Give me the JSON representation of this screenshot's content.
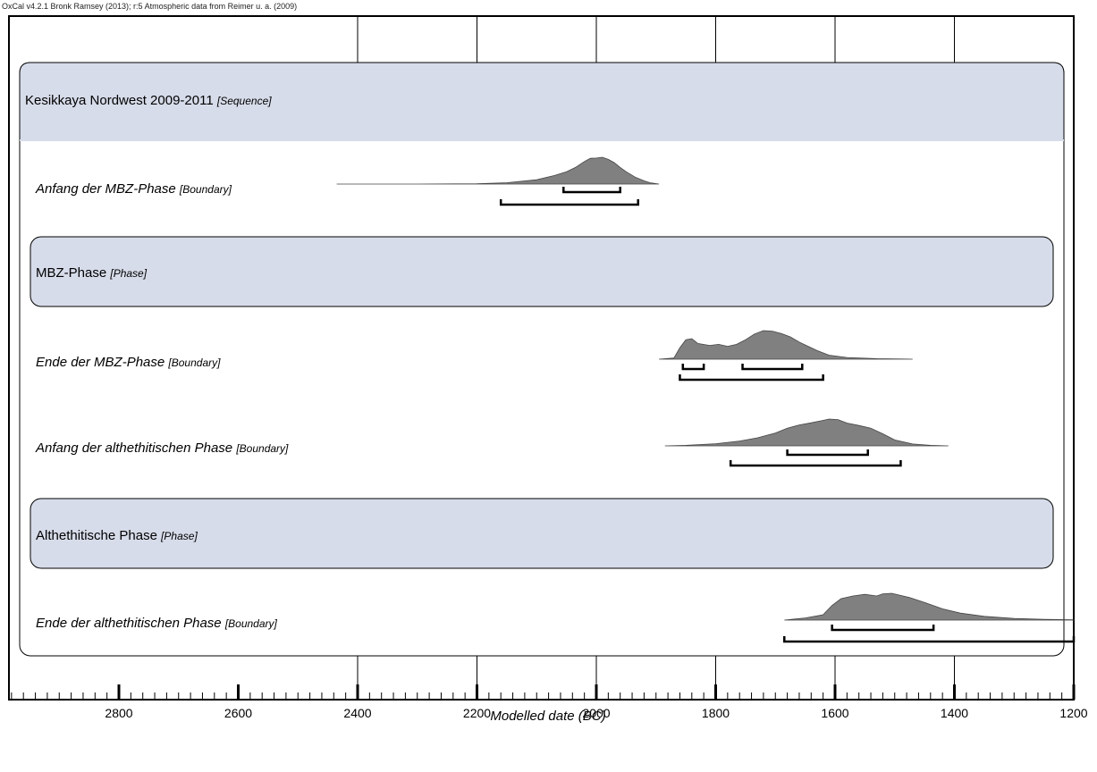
{
  "header_text": "OxCal v4.2.1 Bronk Ramsey (2013); r:5 Atmospheric data from Reimer u. a. (2009)",
  "colors": {
    "panel_fill": "#d7dcea",
    "distribution_fill": "#808080",
    "axis": "#000000"
  },
  "chart_data": {
    "type": "area",
    "xlabel": "Modelled date (BC)",
    "xlim": [
      2980,
      1200
    ],
    "x_reversed": true,
    "grid": true,
    "gridlines": [
      2400,
      2200,
      2000,
      1800,
      1600,
      1400
    ],
    "major_ticks": [
      2800,
      2600,
      2400,
      2200,
      2000,
      1800,
      1600,
      1400,
      1200
    ],
    "tick_labels": [
      "2800",
      "2600",
      "2400",
      "2200",
      "2000",
      "1800",
      "1600",
      "1400",
      "1200"
    ],
    "minor_tick_step": 20,
    "groups": [
      {
        "label": "Kesikkaya Nordwest 2009-2011",
        "kind": "[Sequence]"
      },
      {
        "label": "MBZ-Phase",
        "kind": "[Phase]"
      },
      {
        "label": "Althethitische Phase",
        "kind": "[Phase]"
      }
    ],
    "rows": [
      {
        "label": "Anfang der MBZ-Phase",
        "kind": "[Boundary]",
        "distribution": [
          [
            2435,
            0
          ],
          [
            2300,
            0
          ],
          [
            2200,
            0.01
          ],
          [
            2150,
            0.05
          ],
          [
            2100,
            0.16
          ],
          [
            2070,
            0.32
          ],
          [
            2050,
            0.46
          ],
          [
            2035,
            0.62
          ],
          [
            2020,
            0.84
          ],
          [
            2010,
            0.96
          ],
          [
            2000,
            0.97
          ],
          [
            1990,
            1.0
          ],
          [
            1980,
            0.92
          ],
          [
            1970,
            0.8
          ],
          [
            1960,
            0.62
          ],
          [
            1950,
            0.46
          ],
          [
            1935,
            0.26
          ],
          [
            1920,
            0.12
          ],
          [
            1910,
            0.05
          ],
          [
            1895,
            0
          ]
        ],
        "ranges_68": [
          [
            2055,
            1960
          ]
        ],
        "ranges_95": [
          [
            2160,
            1930
          ]
        ]
      },
      {
        "label": "Ende der MBZ-Phase",
        "kind": "[Boundary]",
        "distribution": [
          [
            1895,
            0
          ],
          [
            1870,
            0.04
          ],
          [
            1860,
            0.4
          ],
          [
            1850,
            0.68
          ],
          [
            1840,
            0.72
          ],
          [
            1830,
            0.55
          ],
          [
            1810,
            0.48
          ],
          [
            1795,
            0.52
          ],
          [
            1780,
            0.45
          ],
          [
            1765,
            0.52
          ],
          [
            1750,
            0.68
          ],
          [
            1735,
            0.88
          ],
          [
            1720,
            1.0
          ],
          [
            1705,
            0.98
          ],
          [
            1690,
            0.9
          ],
          [
            1675,
            0.78
          ],
          [
            1660,
            0.6
          ],
          [
            1645,
            0.45
          ],
          [
            1630,
            0.3
          ],
          [
            1610,
            0.14
          ],
          [
            1580,
            0.06
          ],
          [
            1530,
            0.02
          ],
          [
            1470,
            0
          ]
        ],
        "ranges_68": [
          [
            1855,
            1820
          ],
          [
            1755,
            1655
          ]
        ],
        "ranges_95": [
          [
            1860,
            1620
          ]
        ]
      },
      {
        "label": "Anfang der althethitischen Phase",
        "kind": "[Boundary]",
        "distribution": [
          [
            1885,
            0
          ],
          [
            1850,
            0.02
          ],
          [
            1800,
            0.08
          ],
          [
            1760,
            0.18
          ],
          [
            1730,
            0.3
          ],
          [
            1700,
            0.48
          ],
          [
            1680,
            0.66
          ],
          [
            1660,
            0.78
          ],
          [
            1640,
            0.86
          ],
          [
            1620,
            0.95
          ],
          [
            1610,
            1.0
          ],
          [
            1595,
            0.98
          ],
          [
            1580,
            0.85
          ],
          [
            1560,
            0.76
          ],
          [
            1540,
            0.66
          ],
          [
            1520,
            0.45
          ],
          [
            1500,
            0.22
          ],
          [
            1470,
            0.07
          ],
          [
            1440,
            0.02
          ],
          [
            1410,
            0
          ]
        ],
        "ranges_68": [
          [
            1680,
            1545
          ]
        ],
        "ranges_95": [
          [
            1775,
            1490
          ]
        ]
      },
      {
        "label": "Ende der althethitischen Phase",
        "kind": "[Boundary]",
        "distribution": [
          [
            1685,
            0
          ],
          [
            1650,
            0.08
          ],
          [
            1620,
            0.2
          ],
          [
            1605,
            0.55
          ],
          [
            1590,
            0.8
          ],
          [
            1570,
            0.9
          ],
          [
            1550,
            0.96
          ],
          [
            1530,
            0.9
          ],
          [
            1520,
            0.98
          ],
          [
            1505,
            1.0
          ],
          [
            1490,
            0.92
          ],
          [
            1475,
            0.84
          ],
          [
            1450,
            0.66
          ],
          [
            1420,
            0.42
          ],
          [
            1390,
            0.26
          ],
          [
            1350,
            0.14
          ],
          [
            1300,
            0.06
          ],
          [
            1250,
            0.03
          ],
          [
            1200,
            0.01
          ]
        ],
        "ranges_68": [
          [
            1605,
            1435
          ]
        ],
        "ranges_95": [
          [
            1685,
            1200
          ]
        ]
      }
    ]
  }
}
